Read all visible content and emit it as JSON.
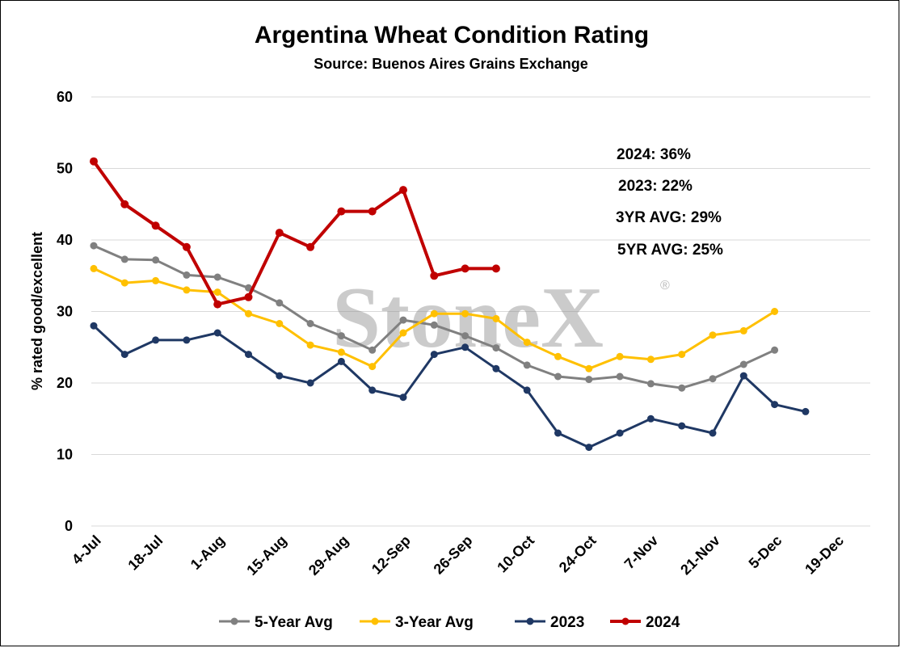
{
  "chart_data": {
    "type": "line",
    "title": "Argentina Wheat Condition Rating",
    "subtitle": "Source: Buenos Aires Grains Exchange",
    "ylabel": "% rated good/excellent",
    "xlabel": "",
    "ylim": [
      0,
      60
    ],
    "yticks": [
      0,
      10,
      20,
      30,
      40,
      50,
      60
    ],
    "grid": true,
    "legend_position": "bottom",
    "x_tick_labels": [
      "4-Jul",
      "18-Jul",
      "1-Aug",
      "15-Aug",
      "29-Aug",
      "12-Sep",
      "26-Sep",
      "10-Oct",
      "24-Oct",
      "7-Nov",
      "21-Nov",
      "5-Dec",
      "19-Dec"
    ],
    "x_dates": [
      "4-Jul",
      "11-Jul",
      "18-Jul",
      "25-Jul",
      "1-Aug",
      "8-Aug",
      "15-Aug",
      "22-Aug",
      "29-Aug",
      "5-Sep",
      "12-Sep",
      "19-Sep",
      "26-Sep",
      "3-Oct",
      "10-Oct",
      "17-Oct",
      "24-Oct",
      "31-Oct",
      "7-Nov",
      "14-Nov",
      "21-Nov",
      "28-Nov",
      "5-Dec",
      "12-Dec"
    ],
    "series": [
      {
        "name": "5-Year Avg",
        "color": "#808080",
        "values": [
          39.2,
          37.3,
          37.2,
          35.1,
          34.8,
          33.3,
          31.2,
          28.3,
          26.6,
          24.6,
          28.8,
          28.1,
          26.6,
          24.9,
          22.5,
          20.9,
          20.5,
          20.9,
          19.9,
          19.3,
          20.6,
          22.6,
          24.6,
          null
        ]
      },
      {
        "name": "3-Year Avg",
        "color": "#ffc000",
        "values": [
          36.0,
          34.0,
          34.3,
          33.0,
          32.7,
          29.7,
          28.3,
          25.3,
          24.3,
          22.3,
          27.0,
          29.7,
          29.7,
          29.0,
          25.7,
          23.7,
          22.0,
          23.7,
          23.3,
          24.0,
          26.7,
          27.3,
          30.0,
          null
        ]
      },
      {
        "name": "2023",
        "color": "#1f3864",
        "values": [
          28,
          24,
          26,
          26,
          27,
          24,
          21,
          20,
          23,
          19,
          18,
          24,
          25,
          22,
          19,
          13,
          11,
          13,
          15,
          14,
          13,
          21,
          17,
          16
        ]
      },
      {
        "name": "2024",
        "color": "#c00000",
        "values": [
          51,
          45,
          42,
          39,
          31,
          32,
          41,
          39,
          44,
          44,
          47,
          35,
          36,
          36,
          null,
          null,
          null,
          null,
          null,
          null,
          null,
          null,
          null,
          null
        ]
      }
    ],
    "annotations": [
      "2024: 36%",
      "2023: 22%",
      "3YR AVG: 29%",
      "5YR AVG: 25%"
    ],
    "watermark": {
      "text": "StoneX",
      "mark": "®"
    }
  }
}
